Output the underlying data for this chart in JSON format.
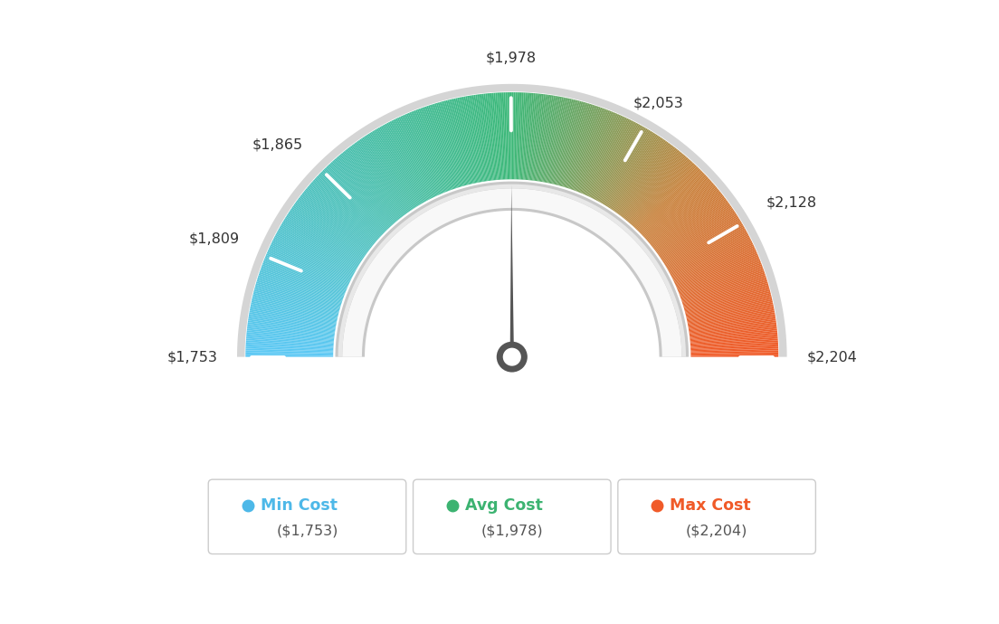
{
  "min_val": 1753,
  "avg_val": 1978,
  "max_val": 2204,
  "tick_labels": [
    "$1,753",
    "$1,809",
    "$1,865",
    "$1,978",
    "$2,053",
    "$2,128",
    "$2,204"
  ],
  "tick_values": [
    1753,
    1809,
    1865,
    1978,
    2053,
    2128,
    2204
  ],
  "legend_items": [
    {
      "label": "Min Cost",
      "value": "($1,753)",
      "color": "#4db8e8"
    },
    {
      "label": "Avg Cost",
      "value": "($1,978)",
      "color": "#3cb371"
    },
    {
      "label": "Max Cost",
      "value": "($2,204)",
      "color": "#f05a28"
    }
  ],
  "bg_color": "#ffffff",
  "needle_color": "#555555",
  "gradient_stops_left": [
    "#5bc8f5",
    "#44c49a"
  ],
  "gradient_stops_right": [
    "#c8a050",
    "#f05a28"
  ],
  "center_green": "#3cb878",
  "track_outer_color": "#d8d8d8",
  "track_inner_color": "#f2f2f2",
  "border_color": "#e0e0e0"
}
